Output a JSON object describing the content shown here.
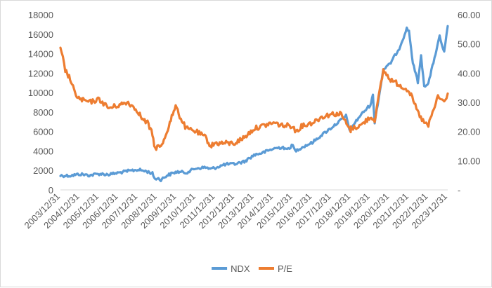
{
  "chart_data": {
    "type": "line",
    "title": "",
    "xlabel": "",
    "ylabel_left": "",
    "ylabel_right": "",
    "x_tick_labels": [
      "2003/12/31",
      "2004/12/31",
      "2005/12/31",
      "2006/12/31",
      "2007/12/31",
      "2008/12/31",
      "2009/12/31",
      "2010/12/31",
      "2011/12/31",
      "2012/12/31",
      "2013/12/31",
      "2014/12/31",
      "2015/12/31",
      "2016/12/31",
      "2017/12/31",
      "2018/12/31",
      "2019/12/31",
      "2020/12/31",
      "2021/12/31",
      "2022/12/31",
      "2023/12/31"
    ],
    "y_left": {
      "min": 0,
      "max": 18000,
      "step": 2000,
      "tick_labels": [
        "0",
        "2000",
        "4000",
        "6000",
        "8000",
        "10000",
        "12000",
        "14000",
        "16000",
        "18000"
      ]
    },
    "y_right": {
      "min": 0,
      "max": 60,
      "step": 10,
      "tick_labels": [
        "-",
        "10.00",
        "20.00",
        "30.00",
        "40.00",
        "50.00",
        "60.00"
      ]
    },
    "grid": false,
    "legend_position": "bottom",
    "series": [
      {
        "name": "NDX",
        "axis": "left",
        "color": "#5b9bd5",
        "points": [
          [
            "2003/12/31",
            1470
          ],
          [
            "2004/06/30",
            1460
          ],
          [
            "2004/12/31",
            1620
          ],
          [
            "2005/06/30",
            1500
          ],
          [
            "2005/12/31",
            1650
          ],
          [
            "2006/06/30",
            1580
          ],
          [
            "2006/12/31",
            1760
          ],
          [
            "2007/06/30",
            1930
          ],
          [
            "2007/12/31",
            2080
          ],
          [
            "2008/06/30",
            1880
          ],
          [
            "2008/09/30",
            1680
          ],
          [
            "2008/11/20",
            1100
          ],
          [
            "2008/12/31",
            1210
          ],
          [
            "2009/03/09",
            1050
          ],
          [
            "2009/06/30",
            1480
          ],
          [
            "2009/12/31",
            1860
          ],
          [
            "2010/06/30",
            1780
          ],
          [
            "2010/12/31",
            2220
          ],
          [
            "2011/06/30",
            2310
          ],
          [
            "2011/09/30",
            2150
          ],
          [
            "2011/12/31",
            2280
          ],
          [
            "2012/06/30",
            2620
          ],
          [
            "2012/12/31",
            2660
          ],
          [
            "2013/06/30",
            2910
          ],
          [
            "2013/12/31",
            3590
          ],
          [
            "2014/06/30",
            3850
          ],
          [
            "2014/12/31",
            4240
          ],
          [
            "2015/06/30",
            4400
          ],
          [
            "2015/08/25",
            4100
          ],
          [
            "2015/12/31",
            4590
          ],
          [
            "2016/02/11",
            4000
          ],
          [
            "2016/06/30",
            4400
          ],
          [
            "2016/12/31",
            4860
          ],
          [
            "2017/06/30",
            5650
          ],
          [
            "2017/12/31",
            6400
          ],
          [
            "2018/09/30",
            7600
          ],
          [
            "2018/12/24",
            5900
          ],
          [
            "2018/12/31",
            6330
          ],
          [
            "2019/06/30",
            7670
          ],
          [
            "2019/12/31",
            8730
          ],
          [
            "2020/02/19",
            9700
          ],
          [
            "2020/03/23",
            6960
          ],
          [
            "2020/06/30",
            10160
          ],
          [
            "2020/09/02",
            12400
          ],
          [
            "2020/12/31",
            12890
          ],
          [
            "2021/06/30",
            14550
          ],
          [
            "2021/11/19",
            16570
          ],
          [
            "2021/12/31",
            16320
          ],
          [
            "2022/03/14",
            13000
          ],
          [
            "2022/06/16",
            11100
          ],
          [
            "2022/08/16",
            13700
          ],
          [
            "2022/10/13",
            10700
          ],
          [
            "2022/12/31",
            10940
          ],
          [
            "2023/07/31",
            15750
          ],
          [
            "2023/10/26",
            14100
          ],
          [
            "2023/12/31",
            16830
          ]
        ]
      },
      {
        "name": "P/E",
        "axis": "right",
        "color": "#ed7d31",
        "points": [
          [
            "2003/12/31",
            48
          ],
          [
            "2004/02/15",
            45
          ],
          [
            "2004/03/31",
            41
          ],
          [
            "2004/06/30",
            38
          ],
          [
            "2004/09/30",
            33
          ],
          [
            "2004/12/31",
            31
          ],
          [
            "2005/06/30",
            30
          ],
          [
            "2005/12/31",
            31
          ],
          [
            "2006/06/30",
            28
          ],
          [
            "2006/12/31",
            29
          ],
          [
            "2007/06/30",
            30
          ],
          [
            "2007/12/31",
            27
          ],
          [
            "2008/03/31",
            24
          ],
          [
            "2008/06/30",
            23
          ],
          [
            "2008/09/30",
            19
          ],
          [
            "2008/11/20",
            14
          ],
          [
            "2008/12/31",
            15
          ],
          [
            "2009/03/09",
            14.5
          ],
          [
            "2009/06/30",
            20
          ],
          [
            "2009/09/30",
            25
          ],
          [
            "2009/12/31",
            29
          ],
          [
            "2010/02/28",
            25
          ],
          [
            "2010/06/30",
            21
          ],
          [
            "2010/12/31",
            20
          ],
          [
            "2011/06/30",
            18
          ],
          [
            "2011/09/30",
            15
          ],
          [
            "2011/12/31",
            16
          ],
          [
            "2012/06/30",
            16
          ],
          [
            "2012/12/31",
            16
          ],
          [
            "2013/06/30",
            18
          ],
          [
            "2013/12/31",
            21
          ],
          [
            "2014/06/30",
            22
          ],
          [
            "2014/12/31",
            23
          ],
          [
            "2015/06/30",
            22
          ],
          [
            "2015/12/31",
            22
          ],
          [
            "2016/02/11",
            20
          ],
          [
            "2016/06/30",
            22
          ],
          [
            "2016/12/31",
            23
          ],
          [
            "2017/06/30",
            25
          ],
          [
            "2017/12/31",
            26
          ],
          [
            "2018/06/30",
            26
          ],
          [
            "2018/12/24",
            20
          ],
          [
            "2018/12/31",
            21
          ],
          [
            "2019/06/30",
            22
          ],
          [
            "2019/12/31",
            25
          ],
          [
            "2020/03/23",
            24
          ],
          [
            "2020/06/30",
            34
          ],
          [
            "2020/09/02",
            41
          ],
          [
            "2020/12/31",
            38
          ],
          [
            "2021/06/30",
            36
          ],
          [
            "2021/12/31",
            34
          ],
          [
            "2022/06/30",
            26
          ],
          [
            "2022/10/13",
            23
          ],
          [
            "2022/12/31",
            22
          ],
          [
            "2023/06/30",
            32
          ],
          [
            "2023/10/26",
            30
          ],
          [
            "2023/12/31",
            33
          ]
        ]
      }
    ]
  }
}
